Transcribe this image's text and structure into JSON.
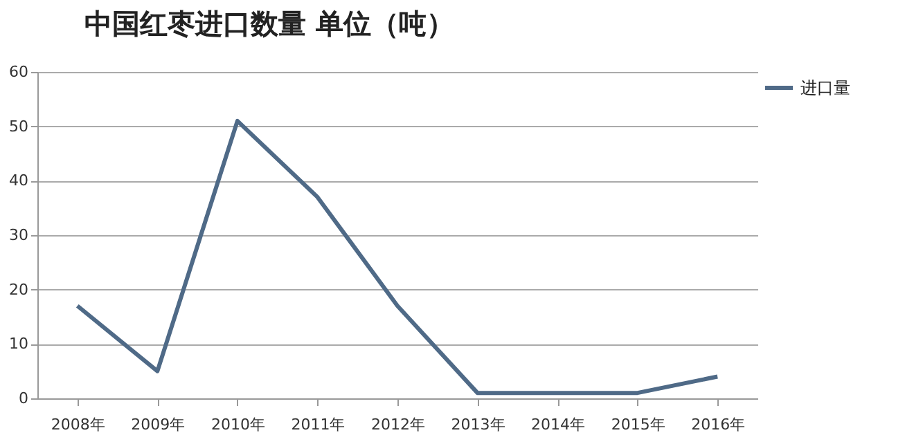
{
  "chart_data": {
    "type": "line",
    "title": "中国红枣进口数量  单位（吨）",
    "categories": [
      "2008年",
      "2009年",
      "2010年",
      "2011年",
      "2012年",
      "2013年",
      "2014年",
      "2015年",
      "2016年"
    ],
    "series": [
      {
        "name": "进口量",
        "color": "#4f6a87",
        "values": [
          17,
          5,
          51,
          37,
          17,
          1,
          1,
          1,
          4
        ]
      }
    ],
    "ylim": [
      0,
      60
    ],
    "yticks": [
      0,
      10,
      20,
      30,
      40,
      50,
      60
    ],
    "grid": "y",
    "legend": "right",
    "marker": "none",
    "line_style": "solid"
  }
}
